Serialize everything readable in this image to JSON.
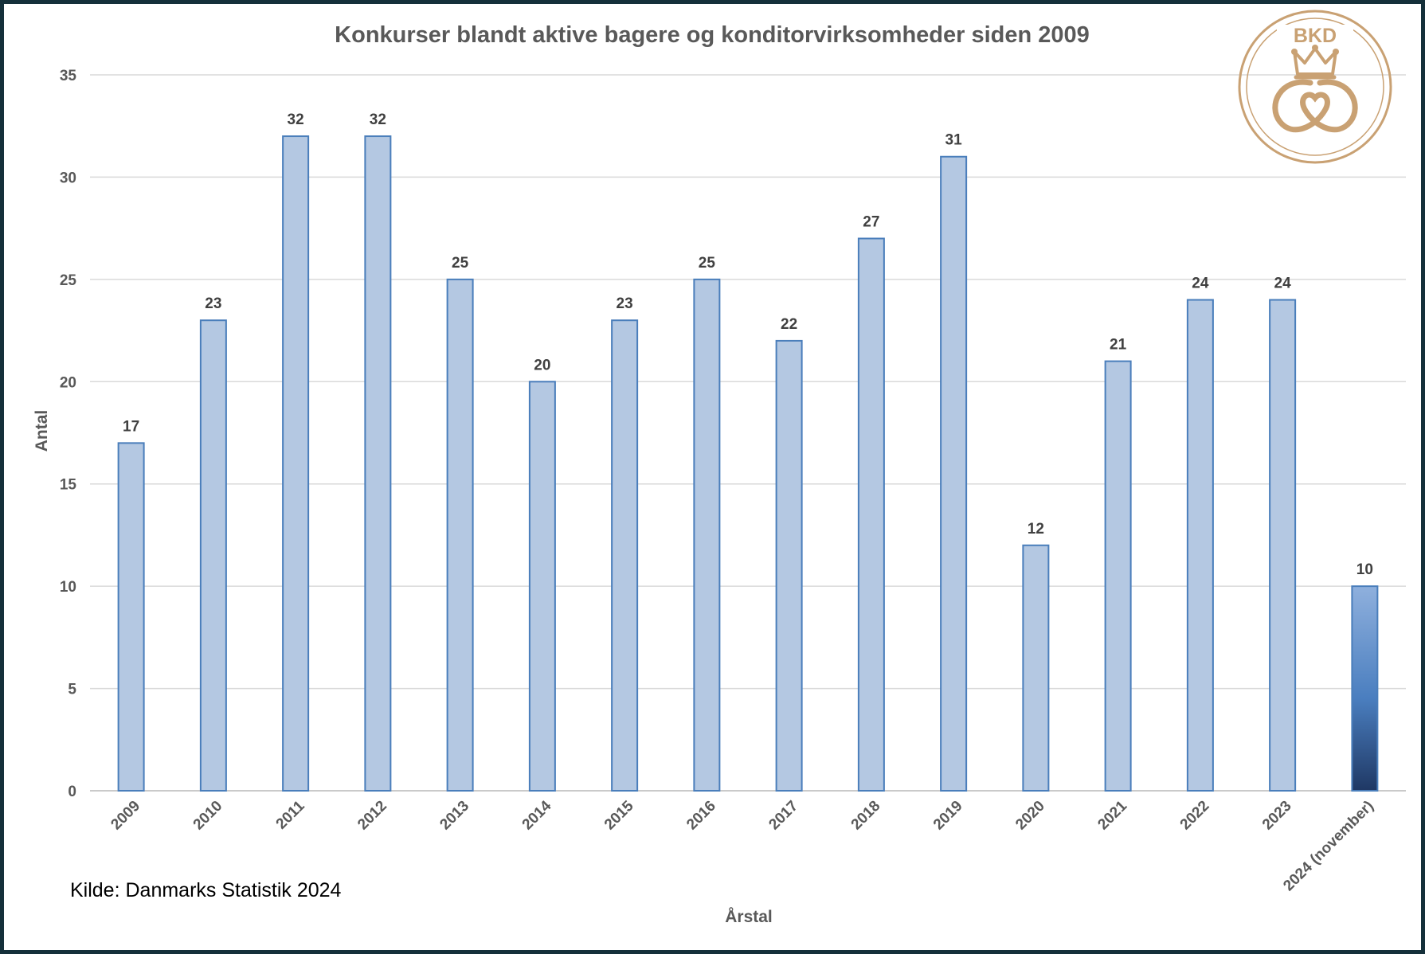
{
  "chart_data": {
    "type": "bar",
    "title": "Konkurser blandt aktive bagere og konditorvirksomheder siden 2009",
    "xlabel": "Årstal",
    "ylabel": "Antal",
    "categories": [
      "2009",
      "2010",
      "2011",
      "2012",
      "2013",
      "2014",
      "2015",
      "2016",
      "2017",
      "2018",
      "2019",
      "2020",
      "2021",
      "2022",
      "2023",
      "2024 (november)"
    ],
    "values": [
      17,
      23,
      32,
      32,
      25,
      20,
      23,
      25,
      22,
      27,
      31,
      12,
      21,
      24,
      24,
      10
    ],
    "highlighted_category": "2024 (november)",
    "ylim": [
      0,
      35
    ],
    "yticks": [
      0,
      5,
      10,
      15,
      20,
      25,
      30,
      35
    ],
    "grid": true,
    "legend": "none",
    "data_labels": true,
    "colors": {
      "bar_fill_top": "#ffffff",
      "bar_fill_body": "#b4c8e2",
      "bar_edge": "#4a7ebb",
      "highlight_fill_top": "#8fb0dd",
      "highlight_fill_bottom": "#1f3864",
      "gridline": "#d9d9d9",
      "frame": "#15303a",
      "logo_gold": "#c9a173"
    }
  },
  "source": "Kilde: Danmarks Statistik 2024",
  "logo": {
    "text": "BKD",
    "icon": "crown-pretzel-emblem"
  }
}
